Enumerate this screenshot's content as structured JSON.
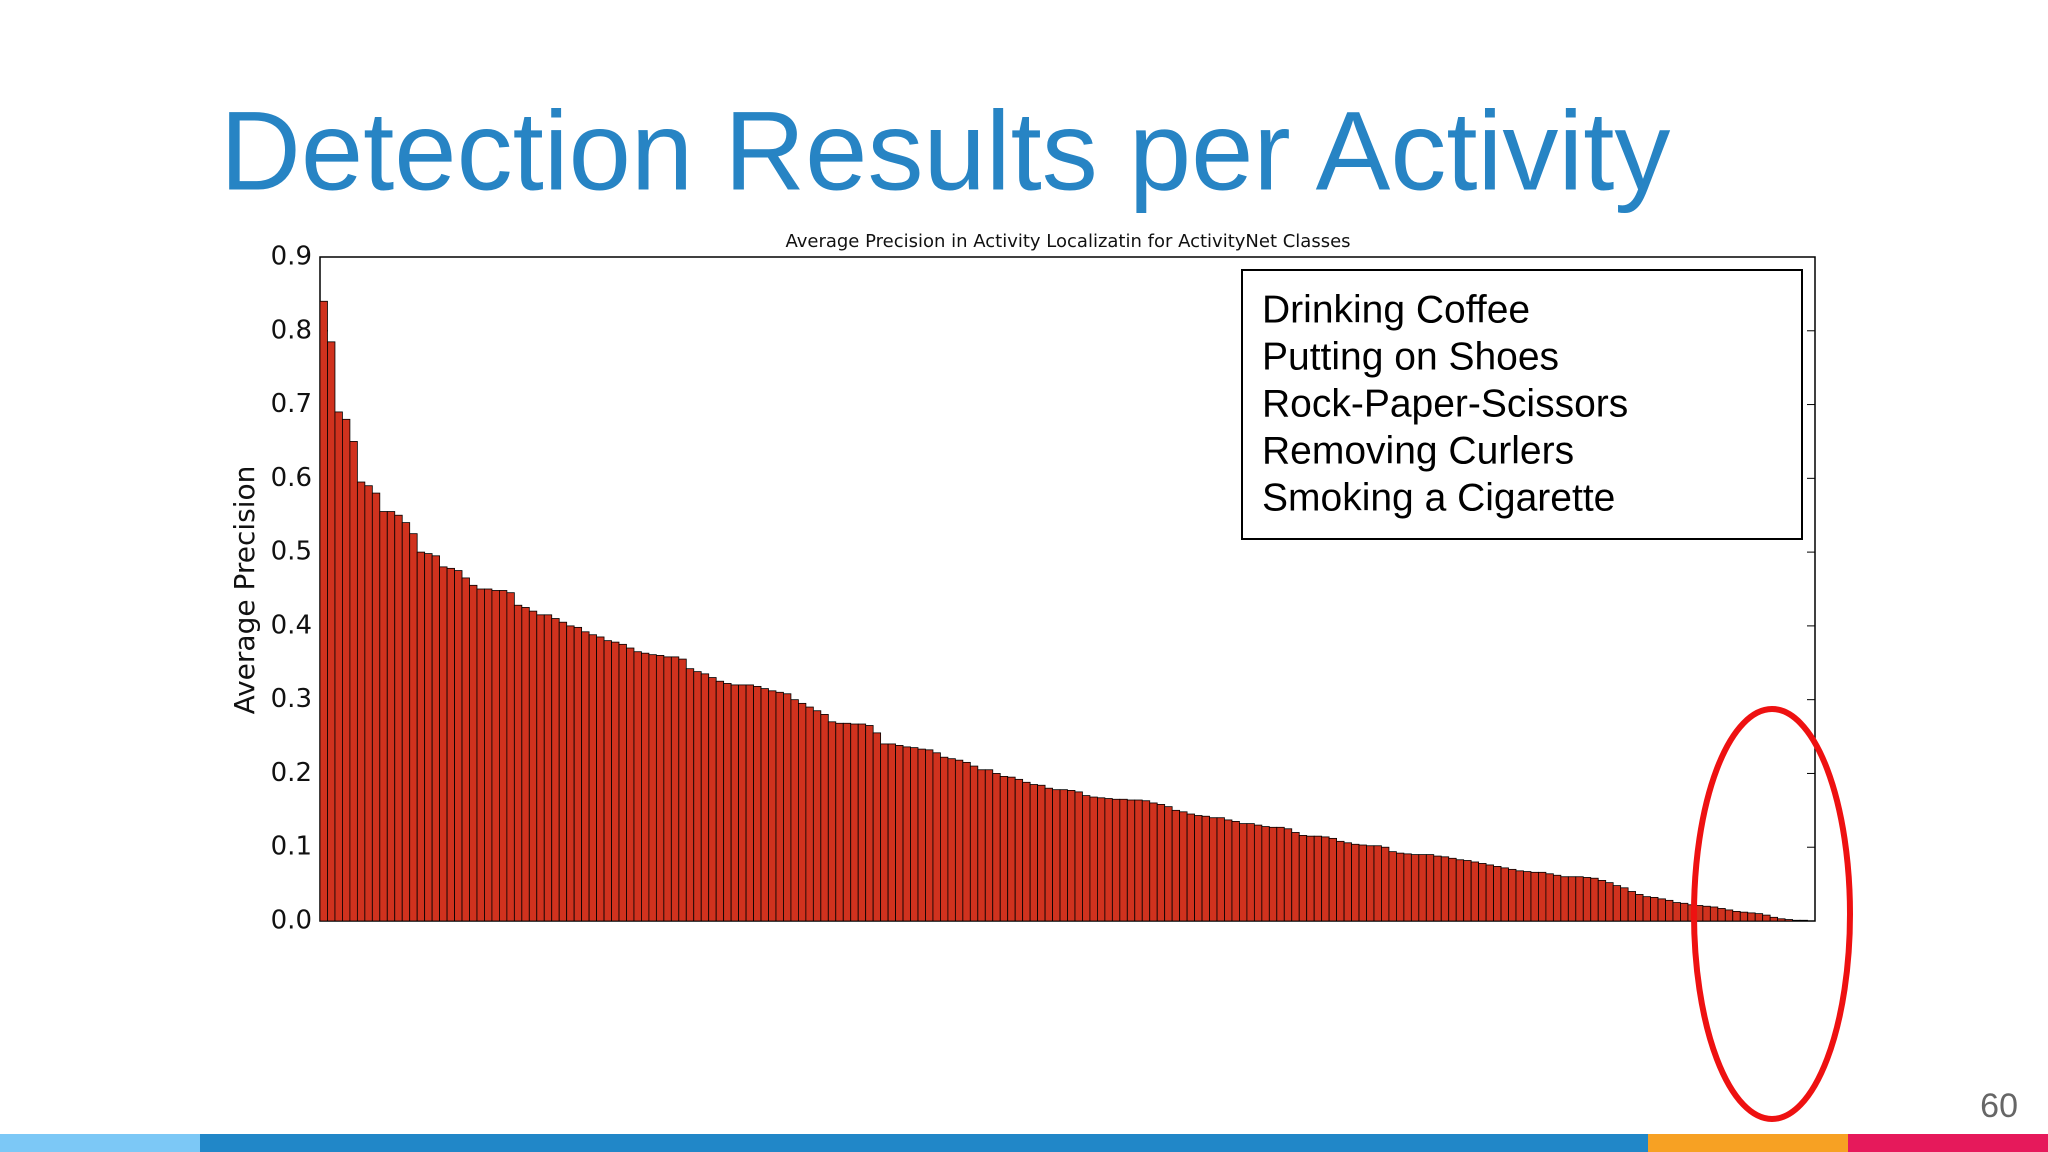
{
  "slide": {
    "title": "Detection Results per Activity",
    "page_number": "60"
  },
  "chart_data": {
    "type": "bar",
    "title": "Average Precision in Activity Localizatin for ActivityNet Classes",
    "ylabel": "Average Precision",
    "annotations": [
      "Drinking Coffee",
      "Putting on Shoes",
      "Rock-Paper-Scissors",
      "Removing Curlers",
      "Smoking a Cigarette"
    ],
    "color": "#d0321e",
    "ylim": [
      0,
      0.9
    ],
    "yticks": [
      {
        "value": 0,
        "label": "0.0"
      },
      0.1,
      0.2,
      0.3,
      0.4,
      0.5,
      0.6,
      0.7,
      0.8,
      0.9
    ],
    "categories": [
      null,
      null,
      null,
      null,
      null,
      null,
      null,
      null,
      null,
      null,
      null,
      null,
      null,
      null,
      null,
      null,
      null,
      null,
      null,
      null,
      null,
      null,
      null,
      null,
      null,
      null,
      null,
      null,
      null,
      null,
      null,
      null,
      null,
      null,
      null,
      null,
      null,
      null,
      null,
      null,
      null,
      null,
      null,
      null,
      null,
      null,
      null,
      null,
      null,
      null,
      null,
      null,
      null,
      null,
      null,
      null,
      null,
      null,
      null,
      null,
      null,
      null,
      null,
      null,
      null,
      null,
      null,
      null,
      null,
      null,
      null,
      null,
      null,
      null,
      null,
      null,
      null,
      null,
      null,
      null,
      null,
      null,
      null,
      null,
      null,
      null,
      null,
      null,
      null,
      null,
      null,
      null,
      null,
      null,
      null,
      null,
      null,
      null,
      null,
      null,
      null,
      null,
      null,
      null,
      null,
      null,
      null,
      null,
      null,
      null,
      null,
      null,
      null,
      null,
      null,
      null,
      null,
      null,
      null,
      null,
      null,
      null,
      null,
      null,
      null,
      null,
      null,
      null,
      null,
      null,
      null,
      null,
      null,
      null,
      null,
      null,
      null,
      null,
      null,
      null,
      null,
      null,
      null,
      null,
      null,
      null,
      null,
      null,
      null,
      null,
      null,
      null,
      null,
      null,
      null,
      null,
      null,
      null,
      null,
      null,
      null,
      null,
      null,
      null,
      null,
      null,
      null,
      null,
      null,
      null,
      null,
      null,
      null,
      null,
      null,
      null,
      null,
      null,
      null,
      null,
      null,
      null,
      null,
      null,
      null,
      null,
      null,
      null,
      null,
      null,
      null,
      null,
      null,
      null,
      null,
      null,
      null,
      null,
      null,
      null
    ],
    "values": [
      0.84,
      0.785,
      0.69,
      0.68,
      0.65,
      0.595,
      0.59,
      0.58,
      0.555,
      0.555,
      0.55,
      0.54,
      0.525,
      0.5,
      0.498,
      0.495,
      0.48,
      0.478,
      0.475,
      0.465,
      0.455,
      0.45,
      0.45,
      0.448,
      0.448,
      0.445,
      0.428,
      0.425,
      0.42,
      0.415,
      0.415,
      0.41,
      0.405,
      0.4,
      0.398,
      0.392,
      0.388,
      0.385,
      0.38,
      0.378,
      0.375,
      0.37,
      0.365,
      0.363,
      0.361,
      0.36,
      0.358,
      0.358,
      0.355,
      0.342,
      0.338,
      0.335,
      0.33,
      0.325,
      0.322,
      0.32,
      0.32,
      0.32,
      0.318,
      0.315,
      0.312,
      0.31,
      0.308,
      0.3,
      0.295,
      0.29,
      0.285,
      0.28,
      0.27,
      0.268,
      0.268,
      0.267,
      0.267,
      0.265,
      0.255,
      0.24,
      0.24,
      0.238,
      0.236,
      0.235,
      0.233,
      0.232,
      0.228,
      0.222,
      0.22,
      0.218,
      0.215,
      0.21,
      0.205,
      0.205,
      0.2,
      0.196,
      0.195,
      0.192,
      0.188,
      0.185,
      0.184,
      0.18,
      0.178,
      0.178,
      0.177,
      0.175,
      0.17,
      0.168,
      0.167,
      0.166,
      0.165,
      0.165,
      0.164,
      0.164,
      0.163,
      0.16,
      0.158,
      0.155,
      0.15,
      0.148,
      0.145,
      0.143,
      0.142,
      0.14,
      0.14,
      0.137,
      0.135,
      0.132,
      0.132,
      0.13,
      0.128,
      0.127,
      0.127,
      0.125,
      0.12,
      0.116,
      0.115,
      0.115,
      0.114,
      0.112,
      0.108,
      0.106,
      0.104,
      0.103,
      0.102,
      0.102,
      0.1,
      0.094,
      0.092,
      0.091,
      0.09,
      0.09,
      0.09,
      0.088,
      0.087,
      0.085,
      0.083,
      0.082,
      0.08,
      0.078,
      0.076,
      0.074,
      0.072,
      0.07,
      0.068,
      0.067,
      0.066,
      0.066,
      0.064,
      0.062,
      0.06,
      0.06,
      0.06,
      0.059,
      0.058,
      0.055,
      0.052,
      0.048,
      0.045,
      0.04,
      0.036,
      0.033,
      0.032,
      0.03,
      0.028,
      0.025,
      0.024,
      0.022,
      0.021,
      0.02,
      0.019,
      0.017,
      0.015,
      0.013,
      0.012,
      0.011,
      0.01,
      0.008,
      0.005,
      0.003,
      0.002,
      0.001,
      0.001,
      0
    ]
  }
}
